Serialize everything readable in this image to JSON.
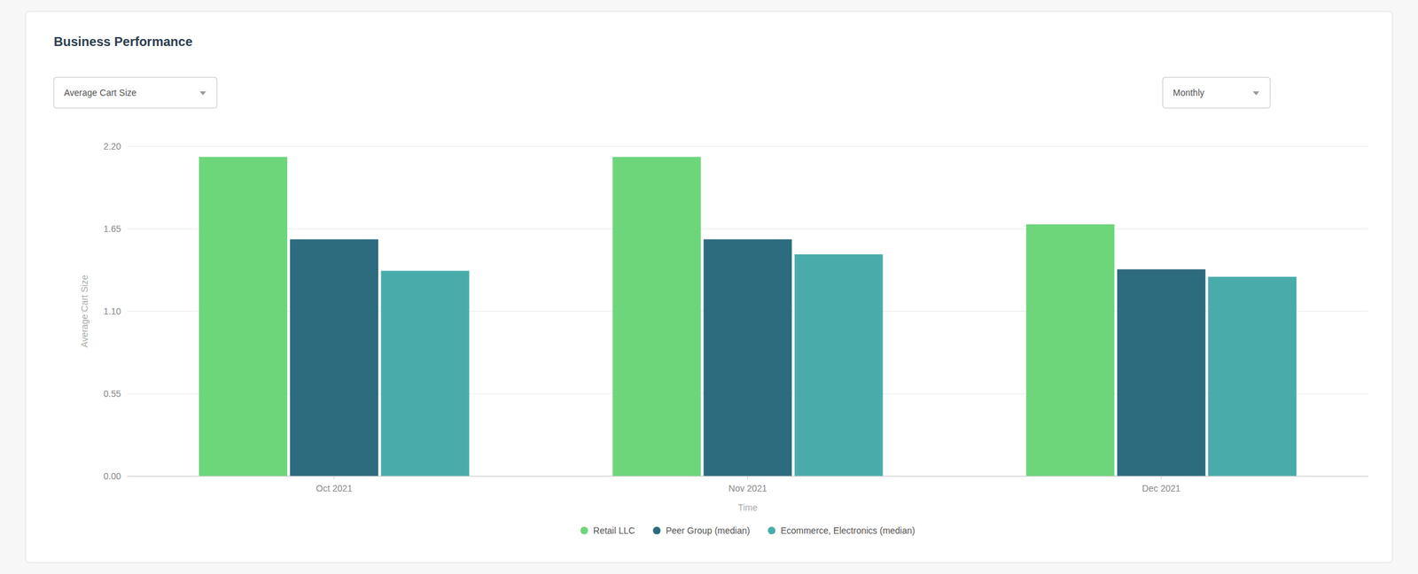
{
  "chart_data": {
    "type": "bar",
    "title": "Business Performance",
    "annotations": [
      "Average Cart Size",
      "Monthly"
    ],
    "categories": [
      "Oct 2021",
      "Nov 2021",
      "Dec 2021"
    ],
    "series": [
      {
        "name": "Retail LLC",
        "color": "#6dd67a",
        "values": [
          2.13,
          2.13,
          1.68
        ]
      },
      {
        "name": "Peer Group (median)",
        "color": "#2d6b7f",
        "values": [
          1.58,
          1.58,
          1.38
        ]
      },
      {
        "name": "Ecommerce, Electronics (median)",
        "color": "#4aacaa",
        "values": [
          1.37,
          1.48,
          1.33
        ]
      }
    ],
    "xlabel": "Time",
    "ylabel": "Average Cart Size",
    "ylim": [
      0,
      2.2
    ],
    "yticks": [
      {
        "value": 0,
        "label": "0.00"
      },
      0.55,
      {
        "value": 1.1,
        "label": "1.10"
      },
      1.65,
      {
        "value": 2.2,
        "label": "2.20"
      }
    ],
    "grid": true,
    "legend": "bottom"
  }
}
